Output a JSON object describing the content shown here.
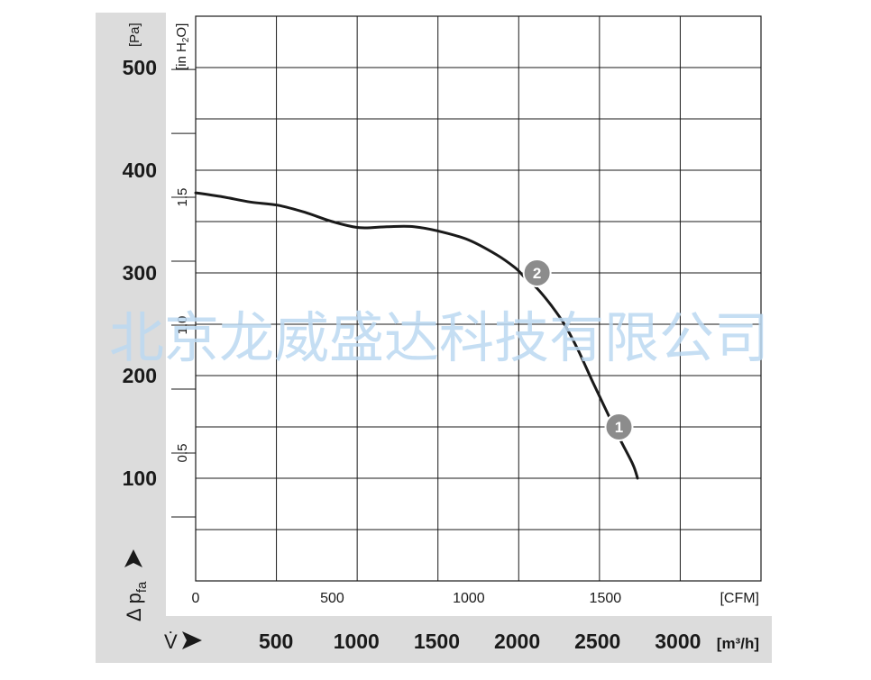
{
  "chart_data": {
    "type": "line",
    "title": "",
    "ylabel_symbol": "Δ p",
    "ylabel_sub": "fa",
    "xlabel_symbol": "V̇",
    "units": {
      "pa": "[Pa]",
      "inh2o_main": "[in H",
      "inh2o_sub": "2",
      "inh2o_tail": "O]",
      "cfm": "[CFM]",
      "m3h": "[m³/h]"
    },
    "ylim_pa": [
      0,
      550
    ],
    "xlim_cfm": [
      0,
      2070
    ],
    "pa_ticks": [
      {
        "value": 100,
        "label": "100"
      },
      {
        "value": 200,
        "label": "200"
      },
      {
        "value": 300,
        "label": "300"
      },
      {
        "value": 400,
        "label": "400"
      },
      {
        "value": 500,
        "label": "500"
      }
    ],
    "inh2o_ticks": [
      {
        "value": 0.5,
        "label": "0,5"
      },
      {
        "value": 1.0,
        "label": "1,0"
      },
      {
        "value": 1.5,
        "label": "1,5"
      }
    ],
    "cfm_ticks": [
      {
        "value": 0,
        "label": "0"
      },
      {
        "value": 500,
        "label": "500"
      },
      {
        "value": 1000,
        "label": "1000"
      },
      {
        "value": 1500,
        "label": "1500"
      }
    ],
    "m3h_ticks": [
      {
        "value": 500,
        "label": "500"
      },
      {
        "value": 1000,
        "label": "1000"
      },
      {
        "value": 1500,
        "label": "1500"
      },
      {
        "value": 2000,
        "label": "2000"
      },
      {
        "value": 2500,
        "label": "2500"
      },
      {
        "value": 3000,
        "label": "3000"
      }
    ],
    "grid": true,
    "series": [
      {
        "color": "#1a1a1a",
        "points": [
          [
            0,
            378
          ],
          [
            100,
            374
          ],
          [
            200,
            369
          ],
          [
            300,
            366
          ],
          [
            400,
            359
          ],
          [
            500,
            350
          ],
          [
            600,
            344
          ],
          [
            700,
            345
          ],
          [
            800,
            345
          ],
          [
            900,
            340
          ],
          [
            1000,
            332
          ],
          [
            1100,
            318
          ],
          [
            1170,
            305
          ],
          [
            1200,
            297
          ],
          [
            1250,
            285
          ],
          [
            1300,
            269
          ],
          [
            1350,
            250
          ],
          [
            1400,
            225
          ],
          [
            1450,
            196
          ],
          [
            1500,
            168
          ],
          [
            1550,
            140
          ],
          [
            1600,
            114
          ],
          [
            1618,
            100
          ]
        ]
      }
    ],
    "operating_points": [
      {
        "label": "2",
        "x": 1250,
        "y": 300
      },
      {
        "label": "1",
        "x": 1550,
        "y": 150
      }
    ]
  },
  "watermark": "北京龙威盛达科技有限公司",
  "colors": {
    "panel": "#dcdcdc",
    "grid": "#1a1a1a",
    "curve": "#1a1a1a",
    "marker": "#8c8c8c",
    "watermark": "#bcd9f2"
  }
}
